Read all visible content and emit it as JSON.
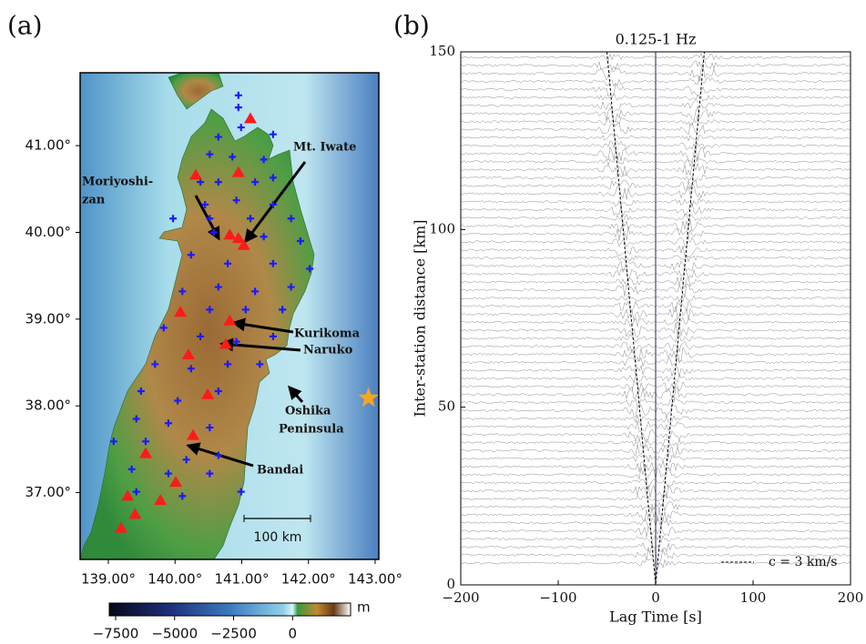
{
  "chart_data": [
    {
      "type": "map",
      "panel_label": "(a)",
      "xlim": [
        138.577,
        143.055
      ],
      "ylim": [
        36.23,
        41.84
      ],
      "xticks": [
        {
          "value": 139,
          "label": "139.00°"
        },
        {
          "value": 140,
          "label": "140.00°"
        },
        {
          "value": 141,
          "label": "141.00°"
        },
        {
          "value": 142,
          "label": "142.00°"
        },
        {
          "value": 143,
          "label": "143.00°"
        }
      ],
      "yticks": [
        {
          "value": 37,
          "label": "37.00°"
        },
        {
          "value": 38,
          "label": "38.00°"
        },
        {
          "value": 39,
          "label": "39.00°"
        },
        {
          "value": 40,
          "label": "40.00°"
        },
        {
          "value": 41,
          "label": "41.00°"
        }
      ],
      "series": [
        {
          "marker": "cross",
          "color": "#1a1aff",
          "x": [
            140.95,
            140.95,
            140.99,
            140.65,
            141.47,
            140.52,
            140.86,
            141.33,
            140.38,
            140.65,
            141.2,
            141.47,
            140.45,
            140.92,
            141.47,
            139.97,
            140.52,
            141.13,
            141.74,
            140.58,
            141.33,
            141.88,
            140.24,
            140.79,
            141.47,
            142.02,
            140.11,
            140.65,
            141.2,
            141.74,
            140.52,
            141.06,
            141.61,
            139.83,
            140.38,
            140.92,
            141.47,
            139.7,
            140.24,
            140.79,
            141.27,
            139.49,
            140.04,
            140.65,
            139.42,
            139.9,
            140.52,
            139.08,
            139.56,
            140.17,
            140.65,
            139.35,
            139.9,
            140.52,
            140.99,
            139.42,
            140.11
          ],
          "values": [
            41.58,
            41.44,
            41.21,
            41.1,
            41.13,
            40.9,
            40.87,
            40.84,
            40.58,
            40.58,
            40.58,
            40.63,
            40.32,
            40.37,
            40.32,
            40.16,
            40.16,
            40.16,
            40.16,
            40.0,
            39.95,
            39.9,
            39.74,
            39.64,
            39.64,
            39.58,
            39.32,
            39.37,
            39.32,
            39.37,
            39.11,
            39.11,
            39.11,
            38.9,
            38.8,
            38.74,
            38.8,
            38.48,
            38.43,
            38.48,
            38.48,
            38.17,
            38.06,
            38.17,
            37.85,
            37.8,
            37.75,
            37.59,
            37.59,
            37.38,
            37.43,
            37.27,
            37.22,
            37.22,
            37.01,
            37.01,
            36.96
          ]
        },
        {
          "marker": "triangle",
          "color": "#ff1a1a",
          "x": [
            141.13,
            140.31,
            140.95,
            140.82,
            140.95,
            141.03,
            140.08,
            140.82,
            140.76,
            140.2,
            140.49,
            140.27,
            139.56,
            140.01,
            139.29,
            139.78,
            139.4,
            139.19
          ],
          "values": [
            41.31,
            40.66,
            40.69,
            39.97,
            39.93,
            39.85,
            39.08,
            38.98,
            38.71,
            38.59,
            38.13,
            37.66,
            37.45,
            37.12,
            36.96,
            36.91,
            36.75,
            36.59
          ]
        },
        {
          "marker": "star",
          "color": "#f5a623",
          "x": [
            142.9
          ],
          "values": [
            38.09
          ]
        }
      ],
      "annotations": [
        [
          "Moriyoshi-",
          "zan"
        ],
        [
          "Mt. Iwate"
        ],
        [
          "Kurikoma"
        ],
        [
          "Naruko"
        ],
        [
          "Oshika",
          "Peninsula"
        ],
        [
          "Bandai"
        ]
      ],
      "scale_bar": "100 km",
      "colorbar": {
        "unit": "m",
        "clim": [
          -7770,
          2460
        ],
        "ticks": [
          {
            "value": -7500,
            "label": "−7500"
          },
          {
            "value": -5000,
            "label": "−5000"
          },
          {
            "value": -2500,
            "label": "−2500"
          },
          0
        ]
      }
    },
    {
      "type": "line",
      "panel_label": "(b)",
      "title": "0.125-1 Hz",
      "xlabel": "Lag Time [s]",
      "ylabel": "Inter-station distance [km]",
      "xlim": [
        -200,
        200
      ],
      "ylim": [
        0,
        150
      ],
      "xticks": [
        {
          "value": -200,
          "label": "−200"
        },
        {
          "value": -100,
          "label": "−100"
        },
        0,
        100,
        200
      ],
      "yticks": [
        0,
        50,
        100,
        150
      ],
      "series": [
        {
          "name": "c = 3 km/s",
          "color": "#000000",
          "dash": true,
          "x": [
            -50,
            0,
            50
          ],
          "values": [
            150,
            0,
            150
          ]
        }
      ],
      "legend": "lower right"
    }
  ]
}
